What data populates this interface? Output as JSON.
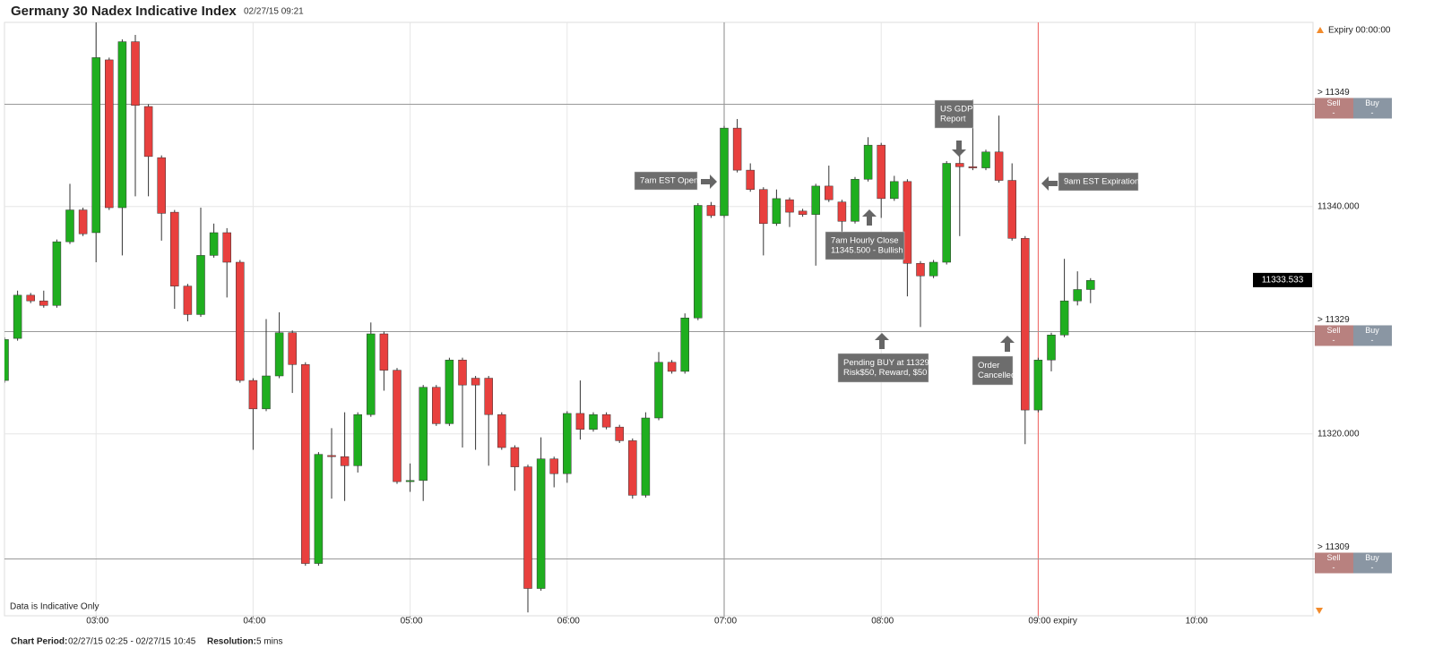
{
  "chart_data": {
    "type": "candlestick",
    "title": "Germany 30 Nadex Indicative Index",
    "subtitle": "02/27/15 09:21",
    "x": [
      "02:25",
      "02:30",
      "02:35",
      "02:40",
      "02:45",
      "02:50",
      "02:55",
      "03:00",
      "03:05",
      "03:10",
      "03:15",
      "03:20",
      "03:25",
      "03:30",
      "03:35",
      "03:40",
      "03:45",
      "03:50",
      "03:55",
      "04:00",
      "04:05",
      "04:10",
      "04:15",
      "04:20",
      "04:25",
      "04:30",
      "04:35",
      "04:40",
      "04:45",
      "04:50",
      "04:55",
      "05:00",
      "05:05",
      "05:10",
      "05:15",
      "05:20",
      "05:25",
      "05:30",
      "05:35",
      "05:40",
      "05:45",
      "05:50",
      "05:55",
      "06:00",
      "06:05",
      "06:10",
      "06:15",
      "06:20",
      "06:25",
      "06:30",
      "06:35",
      "06:40",
      "06:45",
      "06:50",
      "06:55",
      "07:00",
      "07:05",
      "07:10",
      "07:15",
      "07:20",
      "07:25",
      "07:30",
      "07:35",
      "07:40",
      "07:45",
      "07:50",
      "07:55",
      "08:00",
      "08:05",
      "08:10",
      "08:15",
      "08:20",
      "08:25",
      "08:30",
      "08:35",
      "08:40",
      "08:45",
      "08:50",
      "08:55",
      "09:00",
      "09:05",
      "09:10",
      "09:15",
      "09:20"
    ],
    "open": [
      11324.7,
      11328.4,
      11332.2,
      11331.7,
      11331.3,
      11336.9,
      11339.7,
      11337.7,
      11352.9,
      11339.9,
      11354.5,
      11348.8,
      11344.3,
      11339.5,
      11333.0,
      11330.5,
      11335.7,
      11337.7,
      11335.1,
      11324.7,
      11322.2,
      11325.1,
      11328.9,
      11326.1,
      11308.6,
      11318.1,
      11318.0,
      11317.2,
      11321.7,
      11328.8,
      11325.6,
      11315.8,
      11315.9,
      11324.1,
      11320.9,
      11326.5,
      11324.9,
      11324.9,
      11321.7,
      11318.8,
      11317.1,
      11306.4,
      11317.8,
      11316.5,
      11321.8,
      11320.4,
      11321.7,
      11320.6,
      11319.4,
      11314.6,
      11321.4,
      11326.3,
      11325.5,
      11330.2,
      11340.1,
      11339.2,
      11346.9,
      11343.2,
      11341.5,
      11338.5,
      11340.6,
      11339.6,
      11339.3,
      11341.8,
      11340.4,
      11338.7,
      11342.4,
      11345.4,
      11340.7,
      11342.2,
      11335.0,
      11333.9,
      11335.1,
      11343.8,
      11343.5,
      11343.4,
      11344.8,
      11342.3,
      11337.2,
      11322.1,
      11326.5,
      11328.7,
      11331.7,
      11332.7
    ],
    "high": [
      11328.5,
      11332.6,
      11332.4,
      11332.6,
      11337.1,
      11342.0,
      11339.9,
      11356.2,
      11353.1,
      11354.7,
      11355.1,
      11349.0,
      11344.5,
      11339.7,
      11333.2,
      11339.9,
      11338.5,
      11338.1,
      11335.3,
      11324.9,
      11330.1,
      11330.7,
      11329.1,
      11326.3,
      11318.4,
      11320.5,
      11321.9,
      11321.9,
      11329.8,
      11329.0,
      11325.8,
      11317.4,
      11324.3,
      11324.3,
      11326.7,
      11326.7,
      11325.1,
      11325.1,
      11321.9,
      11319.0,
      11317.3,
      11319.7,
      11318.0,
      11322.0,
      11324.7,
      11321.9,
      11321.9,
      11320.8,
      11319.6,
      11321.9,
      11327.2,
      11326.5,
      11330.6,
      11340.3,
      11340.4,
      11347.1,
      11347.7,
      11343.8,
      11341.7,
      11341.5,
      11340.8,
      11339.8,
      11342.0,
      11343.6,
      11340.6,
      11342.6,
      11346.1,
      11345.6,
      11342.7,
      11342.4,
      11335.2,
      11335.3,
      11344.0,
      11344.8,
      11349.4,
      11345.0,
      11348.0,
      11343.8,
      11337.4,
      11326.7,
      11328.9,
      11335.4,
      11334.3,
      11333.7
    ],
    "low": [
      11324.5,
      11328.2,
      11331.5,
      11331.1,
      11331.1,
      11336.7,
      11337.4,
      11335.1,
      11339.7,
      11335.7,
      11340.9,
      11340.9,
      11337.0,
      11331.0,
      11329.9,
      11330.3,
      11335.5,
      11332.0,
      11324.5,
      11318.6,
      11322.0,
      11324.9,
      11323.6,
      11308.4,
      11308.4,
      11314.3,
      11314.1,
      11316.6,
      11321.5,
      11323.8,
      11315.6,
      11314.9,
      11314.1,
      11320.7,
      11320.7,
      11318.8,
      11318.6,
      11317.2,
      11318.6,
      11315.0,
      11304.3,
      11306.2,
      11315.3,
      11315.7,
      11319.5,
      11320.2,
      11320.4,
      11319.2,
      11314.3,
      11314.4,
      11321.2,
      11325.3,
      11325.3,
      11330.0,
      11339.0,
      11339.0,
      11343.0,
      11341.3,
      11335.7,
      11338.3,
      11338.2,
      11339.1,
      11334.8,
      11340.4,
      11337.7,
      11338.5,
      11342.2,
      11339.0,
      11340.5,
      11332.1,
      11329.4,
      11333.7,
      11334.9,
      11337.4,
      11343.2,
      11343.2,
      11342.1,
      11337.0,
      11319.1,
      11321.9,
      11325.5,
      11328.5,
      11331.3,
      11331.5
    ],
    "close": [
      11328.3,
      11332.2,
      11331.7,
      11331.3,
      11336.9,
      11339.7,
      11337.6,
      11353.1,
      11339.9,
      11354.5,
      11348.9,
      11344.4,
      11339.4,
      11333.0,
      11330.5,
      11335.7,
      11337.7,
      11335.1,
      11324.7,
      11322.2,
      11325.1,
      11328.9,
      11326.1,
      11308.6,
      11318.2,
      11318.0,
      11317.2,
      11321.7,
      11328.8,
      11325.6,
      11315.8,
      11315.9,
      11324.1,
      11320.9,
      11326.5,
      11324.3,
      11324.3,
      11321.7,
      11318.8,
      11317.1,
      11306.4,
      11317.8,
      11316.5,
      11321.8,
      11320.4,
      11321.7,
      11320.6,
      11319.4,
      11314.6,
      11321.4,
      11326.3,
      11325.5,
      11330.2,
      11340.1,
      11339.2,
      11346.9,
      11343.2,
      11341.5,
      11338.5,
      11340.7,
      11339.5,
      11339.3,
      11341.8,
      11340.6,
      11338.7,
      11342.4,
      11345.4,
      11340.7,
      11342.2,
      11335.0,
      11333.9,
      11335.1,
      11343.8,
      11343.5,
      11343.4,
      11344.8,
      11342.3,
      11337.2,
      11322.1,
      11326.5,
      11328.7,
      11331.7,
      11332.7,
      11333.5
    ],
    "up_color": "#1fae1f",
    "down_color": "#e8403e",
    "xlim": [
      "02:25",
      "10:45"
    ],
    "xticks": [
      "03:00",
      "04:00",
      "05:00",
      "06:00",
      "07:00",
      "08:00",
      {
        "value": "09:00",
        "label": "09:00 expiry"
      },
      "10:00"
    ],
    "ylim": [
      11304,
      11356.2
    ],
    "yticks": [
      {
        "value": 11320,
        "label": "11320.000"
      },
      {
        "value": 11340,
        "label": "11340.000"
      }
    ],
    "grid": true,
    "crosshair_x": "07:00",
    "expiry_x": "09:00",
    "expiry_label": "Expiry 00:00:00",
    "last_price": {
      "value": 11333.533,
      "label": "11333.533"
    },
    "strikes": [
      {
        "value": 11349,
        "label": "> 11349",
        "sell": "Sell",
        "buy": "Buy",
        "sell_price": "-",
        "buy_price": "-"
      },
      {
        "value": 11329,
        "label": "> 11329",
        "sell": "Sell",
        "buy": "Buy",
        "sell_price": "-",
        "buy_price": "-"
      },
      {
        "value": 11309,
        "label": "> 11309",
        "sell": "Sell",
        "buy": "Buy",
        "sell_price": "-",
        "buy_price": "-"
      }
    ],
    "annotations": [
      {
        "lines": [
          "7am EST Open"
        ]
      },
      {
        "lines": [
          "7am Hourly Close",
          "11345.500 - Bullish"
        ]
      },
      {
        "lines": [
          "US GDP",
          "Report"
        ]
      },
      {
        "lines": [
          "9am EST Expiration"
        ]
      },
      {
        "lines": [
          "Pending BUY at 11329",
          "Risk$50, Reward, $50"
        ]
      },
      {
        "lines": [
          "Order",
          "Cancelled"
        ]
      }
    ],
    "note": "Data is Indicative Only",
    "footer": {
      "period_label": "Chart Period:",
      "period": "02/27/15 02:25 - 02/27/15 10:45",
      "resolution_label": "Resolution:",
      "resolution": "5 mins"
    }
  }
}
